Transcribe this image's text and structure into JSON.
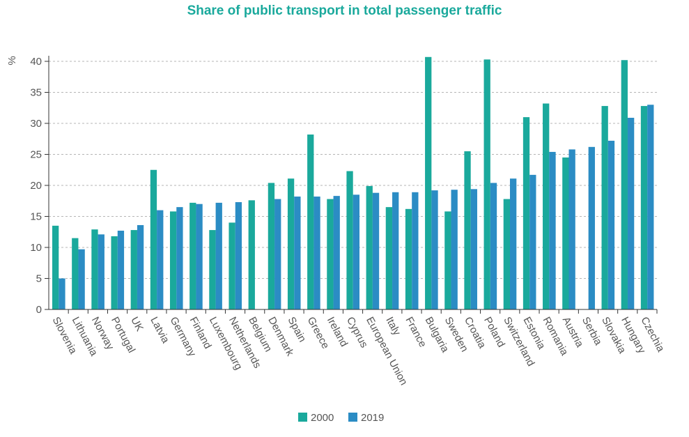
{
  "chart_data": {
    "type": "bar",
    "title": "Share of public transport in total passenger traffic",
    "ylabel": "%",
    "xlabel": "",
    "ylim": [
      0,
      40
    ],
    "yticks": [
      0,
      5,
      10,
      15,
      20,
      25,
      30,
      35,
      40
    ],
    "grid": true,
    "legend_position": "bottom-center",
    "categories": [
      "Slovenia",
      "Lithuania",
      "Norway",
      "Portugal",
      "UK",
      "Latvia",
      "Germany",
      "Finland",
      "Luxembourg",
      "Netherlands",
      "Belgium",
      "Denmark",
      "Spain",
      "Greece",
      "Ireland",
      "Cyprus",
      "European Union",
      "Italy",
      "France",
      "Bulgaria",
      "Sweden",
      "Croatia",
      "Poland",
      "Switzerland",
      "Estonia",
      "Romania",
      "Austria",
      "Serbia",
      "Slovakia",
      "Hungary",
      "Czechia"
    ],
    "series": [
      {
        "name": "2000",
        "color": "#1aa99c",
        "values": [
          13.5,
          11.5,
          12.9,
          11.8,
          12.8,
          22.5,
          15.8,
          17.2,
          12.8,
          14.0,
          17.6,
          20.4,
          21.1,
          28.2,
          17.8,
          22.3,
          19.9,
          16.5,
          16.2,
          40.7,
          15.8,
          25.5,
          40.3,
          17.8,
          31.0,
          33.2,
          24.5,
          null,
          32.8,
          40.2,
          32.8
        ]
      },
      {
        "name": "2019",
        "color": "#2b8cc4",
        "values": [
          5.0,
          9.7,
          12.1,
          12.7,
          13.6,
          16.0,
          16.5,
          17.0,
          17.2,
          17.3,
          null,
          17.8,
          18.2,
          18.2,
          18.3,
          18.5,
          18.8,
          18.9,
          18.9,
          19.2,
          19.3,
          19.4,
          20.4,
          21.1,
          21.7,
          25.4,
          25.8,
          26.2,
          27.2,
          30.9,
          33.0
        ]
      }
    ]
  }
}
